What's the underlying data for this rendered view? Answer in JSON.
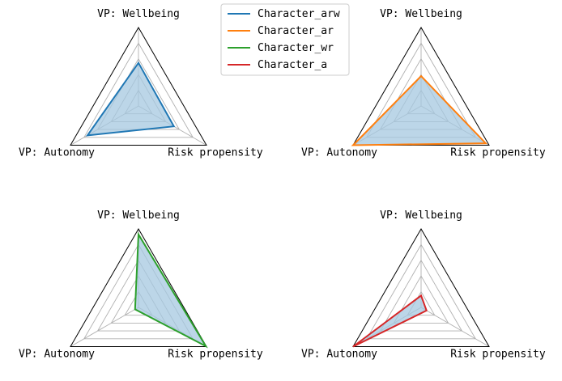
{
  "chart_data": {
    "type": "radar",
    "axes": [
      "VP: Wellbeing",
      "Risk propensity",
      "VP: Autonomy"
    ],
    "rlim": [
      0,
      1
    ],
    "grid": true,
    "legend_position": "top-center",
    "series": [
      {
        "name": "Character_arw",
        "color": "#1f77b4",
        "values": [
          0.55,
          0.52,
          0.75
        ]
      },
      {
        "name": "Character_ar",
        "color": "#ff7f0e",
        "values": [
          0.38,
          0.95,
          1.0
        ]
      },
      {
        "name": "Character_wr",
        "color": "#2ca02c",
        "values": [
          0.93,
          0.99,
          0.05
        ]
      },
      {
        "name": "Character_a",
        "color": "#d62728",
        "values": [
          0.15,
          0.08,
          1.0
        ]
      }
    ],
    "fill_color": "#a6c8e0"
  }
}
